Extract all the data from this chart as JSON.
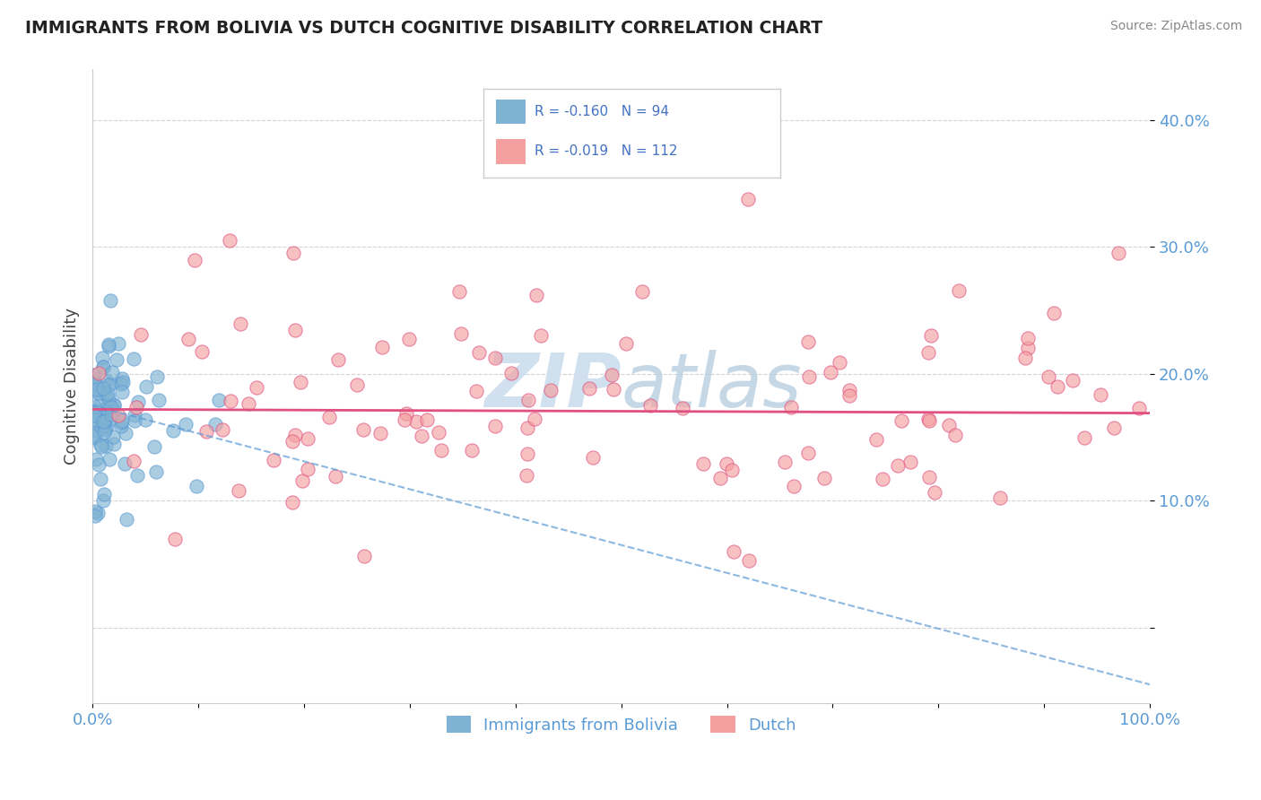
{
  "title": "IMMIGRANTS FROM BOLIVIA VS DUTCH COGNITIVE DISABILITY CORRELATION CHART",
  "source": "Source: ZipAtlas.com",
  "ylabel": "Cognitive Disability",
  "series1_label": "Immigrants from Bolivia",
  "series2_label": "Dutch",
  "series1_R": -0.16,
  "series1_N": 94,
  "series2_R": -0.019,
  "series2_N": 112,
  "series1_dot_color": "#7fb3d3",
  "series2_dot_color": "#f4a0a0",
  "trendline1_color": "#5b9bd5",
  "trendline2_color": "#e05080",
  "background_color": "#ffffff",
  "grid_color": "#c8c8c8",
  "title_color": "#222222",
  "axis_color": "#5b9bd5",
  "tick_label_color": "#5b9bd5",
  "watermark_color": "#d0e0ee",
  "ylabel_color": "#444444",
  "legend_text_color": "#4472c4",
  "xlim": [
    0.0,
    1.0
  ],
  "ylim": [
    -0.06,
    0.44
  ],
  "ytick_right_vals": [
    0.0,
    0.1,
    0.2,
    0.3,
    0.4
  ],
  "ytick_right_labels": [
    "",
    "10.0%",
    "20.0%",
    "30.0%",
    "40.0%"
  ],
  "xtick_vals": [
    0.0,
    0.1,
    0.2,
    0.3,
    0.4,
    0.5,
    0.6,
    0.7,
    0.8,
    0.9,
    1.0
  ],
  "xtick_labels": [
    "0.0%",
    "",
    "",
    "",
    "",
    "",
    "",
    "",
    "",
    "",
    "100.0%"
  ],
  "trendline1_intercept": 0.175,
  "trendline1_slope": -0.22,
  "trendline2_intercept": 0.172,
  "trendline2_slope": -0.003
}
